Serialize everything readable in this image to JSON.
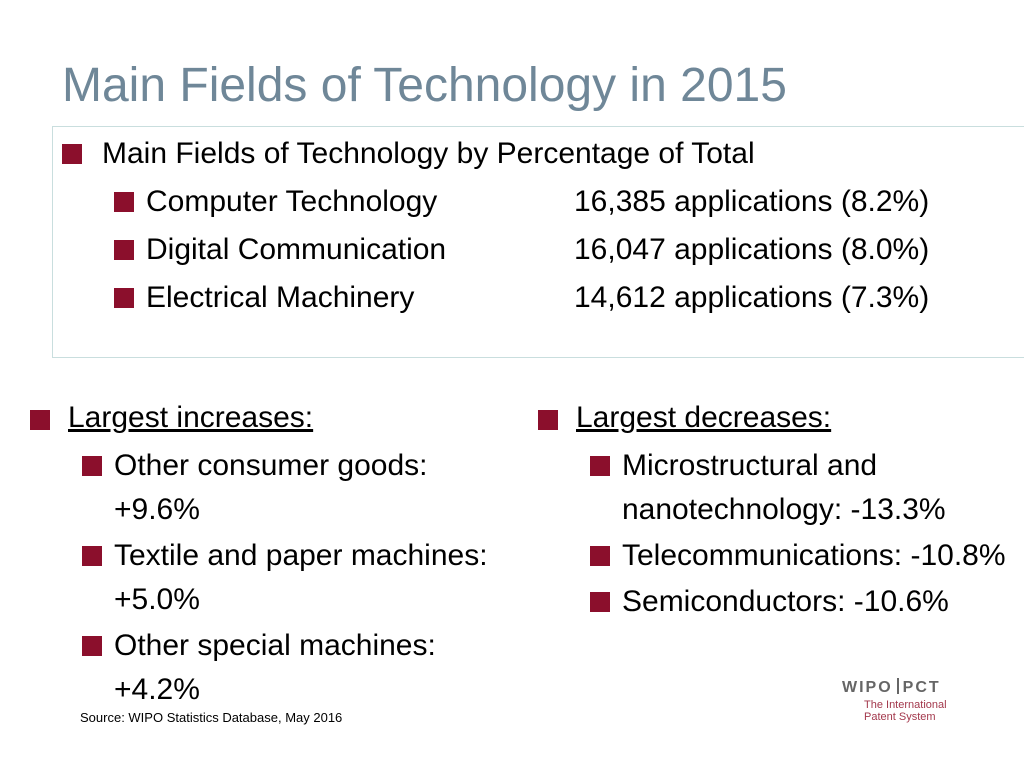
{
  "title": "Main Fields of Technology in 2015",
  "summary": {
    "heading": "Main Fields of Technology by Percentage of Total",
    "items": [
      {
        "name": "Computer Technology",
        "value": "16,385 applications (8.2%)"
      },
      {
        "name": "Digital Communication",
        "value": "16,047 applications (8.0%)"
      },
      {
        "name": "Electrical Machinery",
        "value": "14,612 applications (7.3%)"
      }
    ]
  },
  "increases": {
    "heading": "Largest increases:",
    "items": [
      "Other consumer goods: +9.6%",
      "Textile and paper machines:  +5.0%",
      "Other special machines: +4.2%"
    ]
  },
  "decreases": {
    "heading": "Largest decreases:",
    "items": [
      "Microstructural and nanotechnology:  -13.3%",
      "Telecommunications: -10.8%",
      "Semiconductors:  -10.6%"
    ]
  },
  "source": "Source:  WIPO Statistics Database, May 2016",
  "logo": {
    "left": "WIPO",
    "right": "PCT",
    "tagline_1": "The International",
    "tagline_2": "Patent System"
  },
  "colors": {
    "title": "#6f8798",
    "bullet": "#8b0f2c",
    "box_border": "#c9dede"
  }
}
